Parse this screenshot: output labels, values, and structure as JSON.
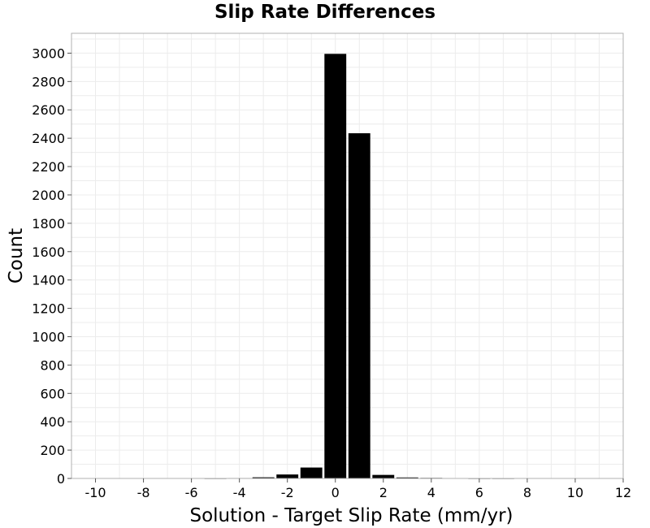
{
  "chart_data": {
    "type": "bar",
    "title": "Slip Rate Differences",
    "xlabel": "Solution - Target Slip Rate (mm/yr)",
    "ylabel": "Count",
    "xlim": [
      -11,
      12
    ],
    "ylim": [
      0,
      3140
    ],
    "xticks": [
      -10,
      -8,
      -6,
      -4,
      -2,
      0,
      2,
      4,
      6,
      8,
      10,
      12
    ],
    "yticks": [
      0,
      200,
      400,
      600,
      800,
      1000,
      1200,
      1400,
      1600,
      1800,
      2000,
      2200,
      2400,
      2600,
      2800,
      3000
    ],
    "bin_width": 1,
    "bins": [
      {
        "x": -10,
        "count": 0
      },
      {
        "x": -9,
        "count": 0
      },
      {
        "x": -8,
        "count": 2
      },
      {
        "x": -7,
        "count": 2
      },
      {
        "x": -6,
        "count": 2
      },
      {
        "x": -5,
        "count": 1
      },
      {
        "x": -4,
        "count": 3
      },
      {
        "x": -3,
        "count": 8
      },
      {
        "x": -2,
        "count": 28
      },
      {
        "x": -1,
        "count": 77
      },
      {
        "x": 0,
        "count": 2995
      },
      {
        "x": 1,
        "count": 2435
      },
      {
        "x": 2,
        "count": 25
      },
      {
        "x": 3,
        "count": 7
      },
      {
        "x": 4,
        "count": 4
      },
      {
        "x": 5,
        "count": 2
      },
      {
        "x": 6,
        "count": 1
      },
      {
        "x": 7,
        "count": 1
      },
      {
        "x": 8,
        "count": 0
      },
      {
        "x": 9,
        "count": 0
      },
      {
        "x": 10,
        "count": 0
      },
      {
        "x": 11,
        "count": 0
      }
    ],
    "bar_color": "#000000",
    "grid": true
  }
}
